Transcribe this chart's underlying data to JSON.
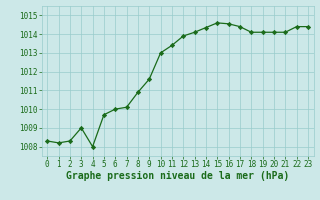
{
  "x": [
    0,
    1,
    2,
    3,
    4,
    5,
    6,
    7,
    8,
    9,
    10,
    11,
    12,
    13,
    14,
    15,
    16,
    17,
    18,
    19,
    20,
    21,
    22,
    23
  ],
  "y": [
    1008.3,
    1008.2,
    1008.3,
    1009.0,
    1008.0,
    1009.7,
    1010.0,
    1010.1,
    1010.9,
    1011.6,
    1013.0,
    1013.4,
    1013.9,
    1014.1,
    1014.35,
    1014.6,
    1014.55,
    1014.4,
    1014.1,
    1014.1,
    1014.1,
    1014.1,
    1014.4,
    1014.4
  ],
  "ylim": [
    1007.5,
    1015.5
  ],
  "yticks": [
    1008,
    1009,
    1010,
    1011,
    1012,
    1013,
    1014,
    1015
  ],
  "xticks": [
    0,
    1,
    2,
    3,
    4,
    5,
    6,
    7,
    8,
    9,
    10,
    11,
    12,
    13,
    14,
    15,
    16,
    17,
    18,
    19,
    20,
    21,
    22,
    23
  ],
  "xlabel": "Graphe pression niveau de la mer (hPa)",
  "line_color": "#1a6b1a",
  "marker_color": "#1a6b1a",
  "bg_color": "#cce8e8",
  "grid_color": "#99cccc",
  "text_color": "#1a6b1a",
  "tick_fontsize": 5.5,
  "xlabel_fontsize": 7.0
}
